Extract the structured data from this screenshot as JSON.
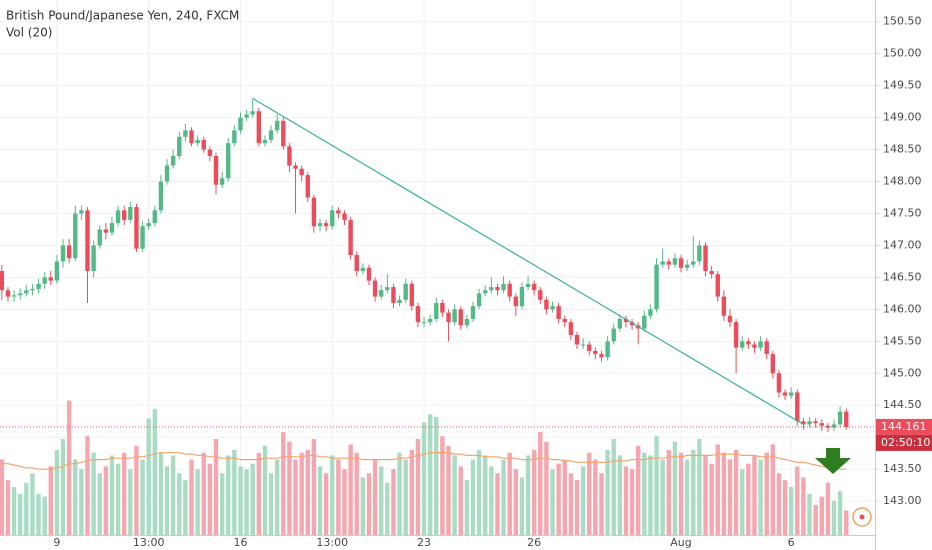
{
  "chart_data": {
    "type": "candlestick",
    "title": "British Pound/Japanese Yen, 240, FXCM",
    "volume_title": "Vol (20)",
    "ylim": [
      142.47,
      150.84
    ],
    "yticks": [
      {
        "value": 143,
        "label": "143.00"
      },
      {
        "value": 143.5,
        "label": "143.50"
      },
      {
        "value": 144,
        "label": "144.00"
      },
      {
        "value": 144.5,
        "label": "144.50"
      },
      {
        "value": 145,
        "label": "145.00"
      },
      {
        "value": 145.5,
        "label": "145.50"
      },
      {
        "value": 146,
        "label": "146.00"
      },
      {
        "value": 146.5,
        "label": "146.50"
      },
      {
        "value": 147,
        "label": "147.00"
      },
      {
        "value": 147.5,
        "label": "147.50"
      },
      {
        "value": 148,
        "label": "148.00"
      },
      {
        "value": 148.5,
        "label": "148.50"
      },
      {
        "value": 149,
        "label": "149.00"
      },
      {
        "value": 149.5,
        "label": "149.50"
      },
      {
        "value": 150,
        "label": "150.00"
      },
      {
        "value": 150.5,
        "label": "150.50"
      }
    ],
    "xlim": [
      -0.3,
      142.7
    ],
    "xticks": [
      {
        "value": 9,
        "label": "9"
      },
      {
        "value": 24,
        "label": "13:00"
      },
      {
        "value": 39,
        "label": "16"
      },
      {
        "value": 54,
        "label": "13:00"
      },
      {
        "value": 69,
        "label": "23"
      },
      {
        "value": 87,
        "label": "26"
      },
      {
        "value": 111,
        "label": "Aug"
      },
      {
        "value": 129,
        "label": "6"
      }
    ],
    "grid": true,
    "up_color": "#53b987",
    "down_color": "#eb4d5c",
    "volume_up_color": "#a9dcc3",
    "volume_down_color": "#f5a6ae",
    "ma_color": "#f6a36b",
    "trend_color": "#3bb38f",
    "last_price_color": "#eb4d5c",
    "ohlc": [
      [
        146.6,
        146.7,
        146.15,
        146.3
      ],
      [
        146.3,
        146.35,
        146.12,
        146.2
      ],
      [
        146.2,
        146.3,
        146.12,
        146.22
      ],
      [
        146.22,
        146.33,
        146.15,
        146.25
      ],
      [
        146.25,
        146.38,
        146.2,
        146.3
      ],
      [
        146.3,
        146.4,
        146.22,
        146.32
      ],
      [
        146.32,
        146.48,
        146.25,
        146.4
      ],
      [
        146.4,
        146.58,
        146.32,
        146.5
      ],
      [
        146.5,
        146.6,
        146.38,
        146.45
      ],
      [
        146.45,
        146.85,
        146.4,
        146.75
      ],
      [
        146.75,
        147.1,
        146.65,
        147.0
      ],
      [
        147.0,
        147.1,
        146.72,
        146.8
      ],
      [
        146.8,
        147.62,
        146.75,
        147.5
      ],
      [
        147.5,
        147.62,
        147.4,
        147.55
      ],
      [
        147.55,
        147.6,
        146.1,
        146.6
      ],
      [
        146.6,
        147.08,
        146.5,
        147.0
      ],
      [
        147.0,
        147.32,
        146.95,
        147.25
      ],
      [
        147.25,
        147.35,
        147.1,
        147.2
      ],
      [
        147.2,
        147.45,
        147.15,
        147.35
      ],
      [
        147.35,
        147.62,
        147.3,
        147.55
      ],
      [
        147.55,
        147.62,
        147.32,
        147.4
      ],
      [
        147.4,
        147.68,
        147.35,
        147.6
      ],
      [
        147.6,
        147.65,
        146.9,
        146.95
      ],
      [
        146.95,
        147.38,
        146.9,
        147.3
      ],
      [
        147.3,
        147.42,
        147.25,
        147.35
      ],
      [
        147.35,
        147.62,
        147.3,
        147.55
      ],
      [
        147.55,
        148.1,
        147.5,
        148.0
      ],
      [
        148.0,
        148.35,
        147.95,
        148.25
      ],
      [
        148.25,
        148.5,
        148.2,
        148.4
      ],
      [
        148.4,
        148.78,
        148.35,
        148.7
      ],
      [
        148.7,
        148.9,
        148.62,
        148.8
      ],
      [
        148.8,
        148.85,
        148.55,
        148.6
      ],
      [
        148.6,
        148.72,
        148.55,
        148.65
      ],
      [
        148.65,
        148.7,
        148.45,
        148.5
      ],
      [
        148.5,
        148.55,
        148.32,
        148.4
      ],
      [
        148.4,
        148.45,
        147.8,
        147.95
      ],
      [
        147.95,
        148.15,
        147.9,
        148.05
      ],
      [
        148.05,
        148.68,
        148.0,
        148.6
      ],
      [
        148.6,
        148.88,
        148.55,
        148.8
      ],
      [
        148.8,
        149.08,
        148.75,
        149.0
      ],
      [
        149.0,
        149.12,
        148.95,
        149.05
      ],
      [
        149.05,
        149.3,
        149.0,
        149.1
      ],
      [
        149.1,
        149.15,
        148.55,
        148.6
      ],
      [
        148.6,
        148.72,
        148.55,
        148.65
      ],
      [
        148.65,
        148.88,
        148.6,
        148.8
      ],
      [
        148.8,
        149.05,
        148.75,
        148.95
      ],
      [
        148.95,
        149.0,
        148.5,
        148.55
      ],
      [
        148.55,
        148.6,
        148.15,
        148.25
      ],
      [
        148.25,
        148.3,
        147.5,
        148.2
      ],
      [
        148.2,
        148.25,
        148.0,
        148.1
      ],
      [
        148.1,
        148.15,
        147.68,
        147.75
      ],
      [
        147.75,
        147.8,
        147.2,
        147.3
      ],
      [
        147.3,
        147.42,
        147.22,
        147.35
      ],
      [
        147.35,
        147.4,
        147.22,
        147.3
      ],
      [
        147.3,
        147.62,
        147.25,
        147.55
      ],
      [
        147.55,
        147.6,
        147.42,
        147.5
      ],
      [
        147.5,
        147.55,
        147.32,
        147.4
      ],
      [
        147.4,
        147.45,
        146.78,
        146.85
      ],
      [
        146.85,
        146.9,
        146.52,
        146.6
      ],
      [
        146.6,
        146.72,
        146.55,
        146.65
      ],
      [
        146.65,
        146.7,
        146.38,
        146.45
      ],
      [
        146.45,
        146.5,
        146.12,
        146.2
      ],
      [
        146.2,
        146.38,
        146.15,
        146.3
      ],
      [
        146.3,
        146.55,
        146.25,
        146.35
      ],
      [
        146.35,
        146.4,
        146.02,
        146.1
      ],
      [
        146.1,
        146.22,
        146.05,
        146.15
      ],
      [
        146.15,
        146.48,
        146.1,
        146.4
      ],
      [
        146.4,
        146.45,
        145.98,
        146.05
      ],
      [
        146.05,
        146.1,
        145.72,
        145.8
      ],
      [
        145.8,
        145.88,
        145.72,
        145.8
      ],
      [
        145.8,
        145.92,
        145.75,
        145.85
      ],
      [
        145.85,
        146.18,
        145.8,
        146.1
      ],
      [
        146.1,
        146.15,
        145.88,
        145.95
      ],
      [
        145.95,
        146.0,
        145.5,
        145.8
      ],
      [
        145.8,
        146.08,
        145.75,
        146.0
      ],
      [
        146.0,
        146.05,
        145.68,
        145.75
      ],
      [
        145.75,
        145.92,
        145.7,
        145.85
      ],
      [
        145.85,
        146.12,
        145.8,
        146.05
      ],
      [
        146.05,
        146.32,
        146.0,
        146.25
      ],
      [
        146.25,
        146.38,
        146.2,
        146.3
      ],
      [
        146.3,
        146.5,
        146.25,
        146.35
      ],
      [
        146.35,
        146.4,
        146.22,
        146.3
      ],
      [
        146.3,
        146.52,
        146.25,
        146.4
      ],
      [
        146.4,
        146.45,
        146.12,
        146.2
      ],
      [
        146.2,
        146.25,
        145.9,
        146.05
      ],
      [
        146.05,
        146.42,
        146.0,
        146.35
      ],
      [
        146.35,
        146.52,
        146.3,
        146.4
      ],
      [
        146.4,
        146.45,
        146.22,
        146.3
      ],
      [
        146.3,
        146.35,
        146.08,
        146.15
      ],
      [
        146.15,
        146.2,
        145.92,
        146.0
      ],
      [
        146.0,
        146.12,
        145.95,
        146.05
      ],
      [
        146.05,
        146.1,
        145.78,
        145.85
      ],
      [
        145.85,
        145.9,
        145.72,
        145.8
      ],
      [
        145.8,
        145.85,
        145.52,
        145.6
      ],
      [
        145.6,
        145.65,
        145.38,
        145.45
      ],
      [
        145.45,
        145.55,
        145.38,
        145.45
      ],
      [
        145.45,
        145.5,
        145.28,
        145.35
      ],
      [
        145.35,
        145.4,
        145.22,
        145.3
      ],
      [
        145.3,
        145.35,
        145.18,
        145.25
      ],
      [
        145.25,
        145.58,
        145.2,
        145.5
      ],
      [
        145.5,
        145.78,
        145.45,
        145.7
      ],
      [
        145.7,
        145.92,
        145.65,
        145.85
      ],
      [
        145.85,
        145.9,
        145.72,
        145.8
      ],
      [
        145.8,
        145.85,
        145.68,
        145.75
      ],
      [
        145.75,
        145.8,
        145.45,
        145.7
      ],
      [
        145.7,
        145.98,
        145.65,
        145.9
      ],
      [
        145.9,
        146.08,
        145.85,
        146.0
      ],
      [
        146.0,
        146.8,
        145.95,
        146.7
      ],
      [
        146.7,
        146.95,
        146.65,
        146.75
      ],
      [
        146.75,
        146.8,
        146.62,
        146.7
      ],
      [
        146.7,
        146.88,
        146.65,
        146.8
      ],
      [
        146.8,
        146.85,
        146.58,
        146.65
      ],
      [
        146.65,
        146.78,
        146.6,
        146.7
      ],
      [
        146.7,
        147.15,
        146.65,
        146.75
      ],
      [
        146.75,
        147.08,
        146.7,
        147.0
      ],
      [
        147.0,
        147.05,
        146.52,
        146.6
      ],
      [
        146.6,
        146.68,
        146.48,
        146.55
      ],
      [
        146.55,
        146.6,
        146.12,
        146.2
      ],
      [
        146.2,
        146.3,
        145.82,
        145.9
      ],
      [
        145.9,
        146.0,
        145.72,
        145.8
      ],
      [
        145.8,
        145.85,
        145.0,
        145.4
      ],
      [
        145.4,
        145.58,
        145.35,
        145.5
      ],
      [
        145.5,
        145.55,
        145.38,
        145.45
      ],
      [
        145.45,
        145.5,
        145.32,
        145.4
      ],
      [
        145.4,
        145.58,
        145.35,
        145.5
      ],
      [
        145.5,
        145.55,
        145.22,
        145.3
      ],
      [
        145.3,
        145.35,
        144.92,
        145.0
      ],
      [
        145.0,
        145.05,
        144.62,
        144.7
      ],
      [
        144.7,
        144.75,
        144.58,
        144.65
      ],
      [
        144.65,
        144.78,
        144.6,
        144.7
      ],
      [
        144.7,
        144.75,
        144.18,
        144.25
      ],
      [
        144.25,
        144.3,
        144.12,
        144.2
      ],
      [
        144.2,
        144.32,
        144.15,
        144.25
      ],
      [
        144.25,
        144.3,
        144.15,
        144.22
      ],
      [
        144.22,
        144.28,
        144.1,
        144.18
      ],
      [
        144.18,
        144.22,
        144.08,
        144.15
      ],
      [
        144.15,
        144.28,
        144.1,
        144.2
      ],
      [
        144.2,
        144.48,
        144.15,
        144.4
      ],
      [
        144.4,
        144.45,
        144.12,
        144.161
      ]
    ],
    "volume_ylim": [
      0,
      390
    ],
    "volume": [
      55,
      40,
      35,
      30,
      38,
      45,
      30,
      28,
      50,
      62,
      70,
      98,
      55,
      48,
      72,
      60,
      45,
      50,
      58,
      52,
      60,
      48,
      65,
      55,
      85,
      92,
      60,
      50,
      58,
      45,
      40,
      55,
      48,
      60,
      52,
      70,
      45,
      58,
      62,
      50,
      48,
      52,
      60,
      65,
      45,
      55,
      75,
      68,
      55,
      60,
      62,
      70,
      50,
      45,
      58,
      55,
      48,
      66,
      60,
      42,
      45,
      55,
      50,
      38,
      48,
      60,
      55,
      62,
      70,
      82,
      88,
      86,
      72,
      65,
      58,
      50,
      40,
      55,
      62,
      58,
      50,
      45,
      55,
      60,
      48,
      42,
      58,
      62,
      75,
      68,
      48,
      52,
      55,
      45,
      40,
      50,
      60,
      55,
      45,
      62,
      70,
      58,
      50,
      48,
      65,
      60,
      58,
      72,
      55,
      62,
      68,
      60,
      55,
      62,
      70,
      58,
      52,
      66,
      60,
      55,
      62,
      48,
      52,
      58,
      55,
      60,
      66,
      45,
      40,
      35,
      50,
      42,
      30,
      22,
      28,
      38,
      25,
      32,
      18
    ],
    "volume_ma": [
      52,
      52,
      51,
      50,
      49,
      49,
      48,
      48,
      48,
      49,
      50,
      52,
      52,
      53,
      54,
      55,
      55,
      55,
      56,
      56,
      56,
      56,
      57,
      57,
      58,
      59,
      60,
      60,
      60,
      60,
      59,
      59,
      58,
      58,
      57,
      57,
      56,
      56,
      56,
      55,
      55,
      55,
      55,
      56,
      56,
      56,
      57,
      57,
      57,
      57,
      58,
      58,
      57,
      57,
      56,
      56,
      56,
      56,
      56,
      55,
      55,
      55,
      55,
      55,
      55,
      56,
      56,
      57,
      58,
      59,
      60,
      60,
      60,
      60,
      59,
      59,
      58,
      58,
      58,
      57,
      57,
      57,
      56,
      56,
      56,
      55,
      55,
      55,
      56,
      56,
      55,
      55,
      54,
      54,
      53,
      53,
      53,
      53,
      53,
      53,
      54,
      54,
      54,
      55,
      55,
      55,
      56,
      56,
      56,
      57,
      57,
      57,
      58,
      58,
      58,
      58,
      58,
      59,
      59,
      59,
      59,
      58,
      58,
      58,
      57,
      57,
      57,
      56,
      55,
      54,
      53,
      53,
      52,
      51,
      50,
      49,
      49,
      48,
      48
    ],
    "trend_line": {
      "x": [
        41,
        131
      ],
      "y": [
        149.3,
        144.2
      ]
    },
    "last_price": 144.161,
    "countdown": "02:50:10"
  }
}
